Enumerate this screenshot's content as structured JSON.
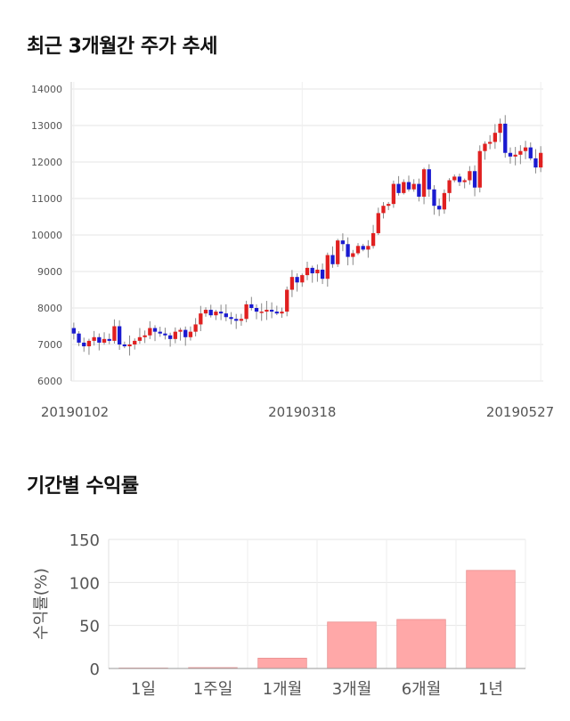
{
  "section1": {
    "title": "최근 3개월간 주가 추세"
  },
  "section2": {
    "title": "기간별 수익률"
  },
  "chart_data": [
    {
      "type": "candlestick",
      "yticks": [
        6000,
        7000,
        8000,
        9000,
        10000,
        11000,
        12000,
        13000,
        14000
      ],
      "ylim": [
        6000,
        14000
      ],
      "xlabels": [
        "20190102",
        "20190318",
        "20190527"
      ],
      "grid": true,
      "colors": {
        "up": "#e02020",
        "down": "#1a1ad0",
        "wick": "#888888"
      },
      "closes": [
        7300,
        7050,
        6950,
        7100,
        7200,
        7050,
        7150,
        7100,
        7500,
        7000,
        6950,
        7000,
        7100,
        7200,
        7250,
        7450,
        7350,
        7300,
        7250,
        7150,
        7350,
        7400,
        7200,
        7350,
        7550,
        7850,
        7950,
        7800,
        7900,
        7850,
        7750,
        7700,
        7650,
        7700,
        8100,
        8000,
        7900,
        7900,
        7950,
        7900,
        7850,
        7900,
        8500,
        8850,
        8700,
        8900,
        9100,
        8950,
        9050,
        8800,
        9450,
        9200,
        9850,
        9750,
        9400,
        9500,
        9700,
        9600,
        9700,
        10050,
        10600,
        10800,
        10850,
        11400,
        11150,
        11450,
        11250,
        11400,
        11050,
        11800,
        11250,
        10800,
        10700,
        11150,
        11500,
        11600,
        11450,
        11500,
        11750,
        11300,
        12300,
        12500,
        12550,
        12800,
        13050,
        12250,
        12150,
        12200,
        12300,
        12400,
        12100,
        11850,
        12250
      ]
    },
    {
      "type": "bar",
      "title": "",
      "categories": [
        "1일",
        "1주일",
        "1개월",
        "3개월",
        "6개월",
        "1년"
      ],
      "values": [
        0,
        1,
        12,
        54,
        57,
        114
      ],
      "ylabel": "수익률(%)",
      "ylim": [
        0,
        150
      ],
      "yticks": [
        0,
        50,
        100,
        150
      ],
      "colors": {
        "bar": "#ffa8a8",
        "bar_edge": "#e89090"
      }
    }
  ]
}
